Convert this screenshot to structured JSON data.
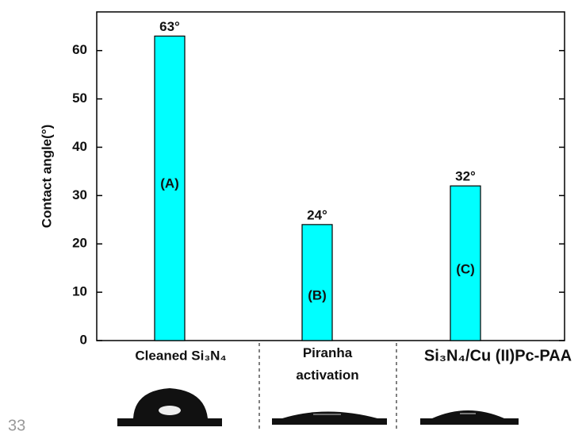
{
  "chart_data": {
    "type": "bar",
    "y_label": "Contact angle(°)",
    "categories": [
      "Cleaned Si₃N₄",
      "Piranha\nactivation",
      "Si₃N₄/Cu (II)Pc-PAA"
    ],
    "values": [
      63,
      24,
      32
    ],
    "value_labels": [
      "63°",
      "24°",
      "32°"
    ],
    "bar_labels": [
      "(A)",
      "(B)",
      "(C)"
    ],
    "color": "#00ffff",
    "ylim": [
      0,
      68
    ],
    "yticks": [
      0,
      10,
      20,
      30,
      40,
      50,
      60
    ]
  },
  "page_number": "33"
}
